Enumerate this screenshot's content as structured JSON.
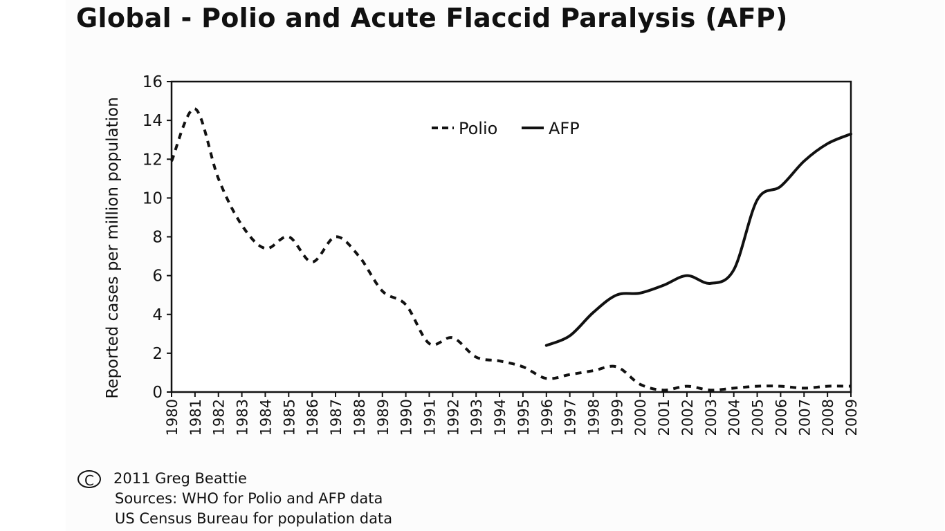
{
  "header": {
    "title": "Global - Polio and Acute Flaccid Paralysis (AFP)"
  },
  "footer": {
    "copyright_symbol": "C",
    "copyright": "2011 Greg Beattie",
    "sources_line1": "Sources: WHO for Polio and AFP data",
    "sources_line2": "US Census Bureau for population data"
  },
  "chart_data": {
    "type": "line",
    "title": "Global - Polio and Acute Flaccid Paralysis (AFP)",
    "xlabel": "",
    "ylabel": "Reported cases per million population",
    "ylim": [
      0,
      16
    ],
    "yticks": [
      0,
      2,
      4,
      6,
      8,
      10,
      12,
      14,
      16
    ],
    "grid": false,
    "legend_position": "top-center",
    "x": [
      1980,
      1981,
      1982,
      1983,
      1984,
      1985,
      1986,
      1987,
      1988,
      1989,
      1990,
      1991,
      1992,
      1993,
      1994,
      1995,
      1996,
      1997,
      1998,
      1999,
      2000,
      2001,
      2002,
      2003,
      2004,
      2005,
      2006,
      2007,
      2008,
      2009
    ],
    "x_tick_labels": [
      "1980",
      "1981",
      "1982",
      "1983",
      "1984",
      "1985",
      "1986",
      "1987",
      "1988",
      "1989",
      "1990",
      "1991",
      "1992",
      "1993",
      "1994",
      "1995",
      "1996",
      "1997",
      "1998",
      "1999",
      "2000",
      "2001",
      "2002",
      "2003",
      "2004",
      "2005",
      "2006",
      "2007",
      "2008",
      "2009"
    ],
    "series": [
      {
        "name": "Polio",
        "style": "dashed",
        "color": "#111111",
        "values": [
          11.9,
          14.6,
          11.0,
          8.6,
          7.4,
          8.0,
          6.7,
          8.0,
          7.0,
          5.2,
          4.5,
          2.5,
          2.8,
          1.8,
          1.6,
          1.3,
          0.7,
          0.9,
          1.1,
          1.3,
          0.4,
          0.1,
          0.3,
          0.1,
          0.2,
          0.3,
          0.3,
          0.2,
          0.3,
          0.3
        ]
      },
      {
        "name": "AFP",
        "style": "solid",
        "color": "#111111",
        "start_year": 1996,
        "values": [
          null,
          null,
          null,
          null,
          null,
          null,
          null,
          null,
          null,
          null,
          null,
          null,
          null,
          null,
          null,
          null,
          2.4,
          2.9,
          4.1,
          5.0,
          5.1,
          5.5,
          6.0,
          5.6,
          6.3,
          9.9,
          10.6,
          11.9,
          12.8,
          13.3
        ]
      }
    ]
  }
}
